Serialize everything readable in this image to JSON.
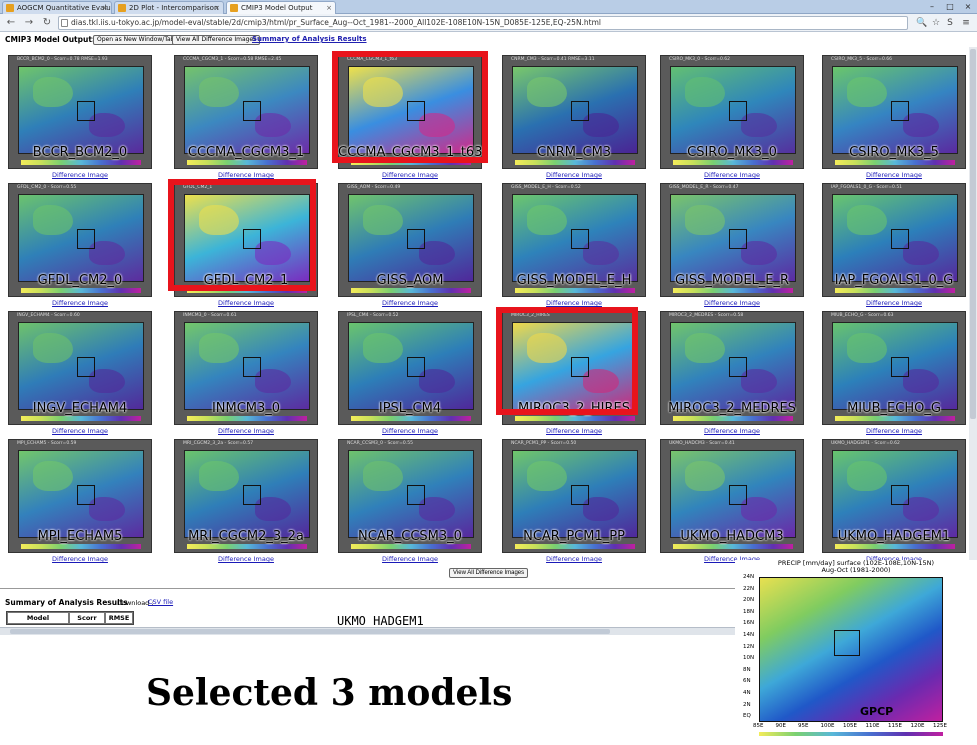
{
  "browser": {
    "tabs": [
      {
        "label": "AOGCM Quantitative Evalu"
      },
      {
        "label": "2D Plot - Intercomparison"
      },
      {
        "label": "CMIP3 Model Output"
      }
    ],
    "url": "dias.tkl.iis.u-tokyo.ac.jp/model-eval/stable/2d/cmip3/html/pr_Surface_Aug--Oct_1981--2000_All102E-108E10N-15N_D085E-125E,EQ-25N.html"
  },
  "header": {
    "title": "CMIP3 Model Output:",
    "open_new_tab": "Open as New Window/Tab",
    "view_all_diff": "View All Difference Images",
    "summary_link": "Summary of Analysis Results"
  },
  "models": [
    {
      "name": "BCCR_BCM2_0",
      "link": "Difference Image",
      "stat": "BCCR_BCM2_0 - Scorr=0.78 RMSE=1.93",
      "colors": [
        "#6fc56a",
        "#2f7fb8",
        "#5a2a9c"
      ]
    },
    {
      "name": "CCCMA_CGCM3_1",
      "link": "Difference Image",
      "stat": "CCCMA_CGCM3_1 - Scorr=0.58 RMSE=2.45",
      "colors": [
        "#74c36b",
        "#3c88c0",
        "#6c2ca8"
      ]
    },
    {
      "name": "CCCMA_CGCM3_1_t63",
      "link": "Difference Image",
      "stat": "CCCMA_CGCM3_1_t63",
      "colors": [
        "#f0e14a",
        "#3a8ee0",
        "#d02a8a"
      ]
    },
    {
      "name": "CNRM_CM3",
      "link": "Difference Image",
      "stat": "CNRM_CM3 - Scorr=0.41 RMSE=3.11",
      "colors": [
        "#79c86a",
        "#2a70b0",
        "#4a2494"
      ]
    },
    {
      "name": "CSIRO_MK3_0",
      "link": "Difference Image",
      "stat": "CSIRO_MK3_0 - Scorr=0.62",
      "colors": [
        "#62bf72",
        "#2f86bb",
        "#55309e"
      ]
    },
    {
      "name": "CSIRO_MK3_5",
      "link": "Difference Image",
      "stat": "CSIRO_MK3_5 - Scorr=0.66",
      "colors": [
        "#6ac66a",
        "#3584c2",
        "#5a2aa0"
      ]
    },
    {
      "name": "GFDL_CM2_0",
      "link": "Difference Image",
      "stat": "GFDL_CM2_0 - Scorr=0.55",
      "colors": [
        "#6bc36d",
        "#2f80b8",
        "#5d2c9e"
      ]
    },
    {
      "name": "GFDL_CM2_1",
      "link": "Difference Image",
      "stat": "GFDL_CM2_1",
      "colors": [
        "#ede04c",
        "#3cb4d8",
        "#7a2cc0"
      ]
    },
    {
      "name": "GISS_AOM",
      "link": "Difference Image",
      "stat": "GISS_AOM - Scorr=0.49",
      "colors": [
        "#70c46c",
        "#2f7cb6",
        "#50289a"
      ]
    },
    {
      "name": "GISS_MODEL_E_H",
      "link": "Difference Image",
      "stat": "GISS_MODEL_E_H - Scorr=0.52",
      "colors": [
        "#6cc66d",
        "#2e82ba",
        "#58309e"
      ]
    },
    {
      "name": "GISS_MODEL_E_R",
      "link": "Difference Image",
      "stat": "GISS_MODEL_E_R - Scorr=0.47",
      "colors": [
        "#7ac46a",
        "#3886c0",
        "#5c2ba2"
      ]
    },
    {
      "name": "IAP_FGOALS1_0_G",
      "link": "Difference Image",
      "stat": "IAP_FGOALS1_0_G - Scorr=0.51",
      "colors": [
        "#69c56e",
        "#2c7fba",
        "#56299c"
      ]
    },
    {
      "name": "INGV_ECHAM4",
      "link": "Difference Image",
      "stat": "INGV_ECHAM4 - Scorr=0.60",
      "colors": [
        "#6ec26b",
        "#2f7cb8",
        "#522a9a"
      ]
    },
    {
      "name": "INMCM3_0",
      "link": "Difference Image",
      "stat": "INMCM3_0 - Scorr=0.61",
      "colors": [
        "#73c76a",
        "#3484be",
        "#5b2ca0"
      ]
    },
    {
      "name": "IPSL_CM4",
      "link": "Difference Image",
      "stat": "IPSL_CM4 - Scorr=0.52",
      "colors": [
        "#6ac46d",
        "#2d7eb8",
        "#4f289a"
      ]
    },
    {
      "name": "MIROC3_2_HIRES",
      "link": "Difference Image",
      "stat": "MIROC3_2_HIRES",
      "colors": [
        "#f0d84a",
        "#36a4e0",
        "#d0287a"
      ]
    },
    {
      "name": "MIROC3_2_MEDRES",
      "link": "Difference Image",
      "stat": "MIROC3_2_MEDRES - Scorr=0.58",
      "colors": [
        "#70c56b",
        "#3182bc",
        "#5a2ba0"
      ]
    },
    {
      "name": "MIUB_ECHO_G",
      "link": "Difference Image",
      "stat": "MIUB_ECHO_G - Scorr=0.63",
      "colors": [
        "#68c36e",
        "#2c80ba",
        "#55299c"
      ]
    },
    {
      "name": "MPI_ECHAM5",
      "link": "Difference Image",
      "stat": "MPI_ECHAM5 - Scorr=0.59",
      "colors": [
        "#72c66b",
        "#3381bc",
        "#5c2ba0"
      ]
    },
    {
      "name": "MRI_CGCM2_3_2a",
      "link": "Difference Image",
      "stat": "MRI_CGCM2_3_2a - Scorr=0.57",
      "colors": [
        "#6bc46c",
        "#2f7eb8",
        "#53299c"
      ]
    },
    {
      "name": "NCAR_CCSM3_0",
      "link": "Difference Image",
      "stat": "NCAR_CCSM3_0 - Scorr=0.55",
      "colors": [
        "#6ec26c",
        "#3080ba",
        "#58299e"
      ]
    },
    {
      "name": "NCAR_PCM1_PP",
      "link": "Difference Image",
      "stat": "NCAR_PCM1_PP - Scorr=0.50",
      "colors": [
        "#70c66a",
        "#2e7eb8",
        "#50289a"
      ]
    },
    {
      "name": "UKMO_HADCM3",
      "link": "Difference Image",
      "stat": "UKMO_HADCM3 - Scorr=0.41",
      "colors": [
        "#79c46b",
        "#3184bc",
        "#6a2aa8"
      ]
    },
    {
      "name": "UKMO_HADGEM1",
      "link": "Difference Image",
      "stat": "UKMO_HADGEM1 - Scorr=0.62",
      "colors": [
        "#68c56d",
        "#2e80ba",
        "#5e2aa2"
      ]
    }
  ],
  "view_all_bottom": "View All Difference Images",
  "summary": {
    "title": "Summary of Analysis Results",
    "download_label": "Download :",
    "csv_link": "CSV file",
    "columns": [
      "Model",
      "Scorr",
      "RMSE"
    ]
  },
  "captions": {
    "model_name": "UKMO_HADGEM1",
    "selected": "Selected 3 models"
  },
  "gpcp": {
    "title_line1": "PRECIP [mm/day] surface (102E-108E,10N-15N)",
    "title_line2": "Aug-Oct (1981-2000)",
    "label": "GPCP",
    "yticks": [
      "24N",
      "22N",
      "20N",
      "18N",
      "16N",
      "14N",
      "12N",
      "10N",
      "8N",
      "6N",
      "4N",
      "2N",
      "EQ"
    ],
    "xticks": [
      "85E",
      "90E",
      "95E",
      "100E",
      "105E",
      "110E",
      "115E",
      "120E",
      "125E"
    ]
  },
  "colors": {
    "selection": "#e8141c",
    "link": "#1a1ab8"
  }
}
